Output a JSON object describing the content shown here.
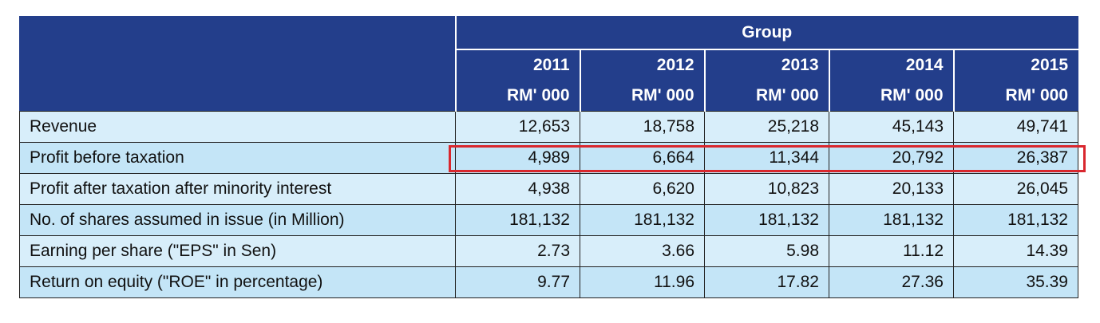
{
  "table": {
    "group_label": "Group",
    "years": [
      "2011",
      "2012",
      "2013",
      "2014",
      "2015"
    ],
    "unit_label": "RM' 000",
    "rows": [
      {
        "label": "Revenue",
        "values": [
          "12,653",
          "18,758",
          "25,218",
          "45,143",
          "49,741"
        ]
      },
      {
        "label": "Profit before taxation",
        "values": [
          "4,989",
          "6,664",
          "11,344",
          "20,792",
          "26,387"
        ]
      },
      {
        "label": "Profit after taxation after minority interest",
        "values": [
          "4,938",
          "6,620",
          "10,823",
          "20,133",
          "26,045"
        ]
      },
      {
        "label": "No. of shares assumed in issue (in Million)",
        "values": [
          "181,132",
          "181,132",
          "181,132",
          "181,132",
          "181,132"
        ]
      },
      {
        "label": "Earning per share (\"EPS\" in Sen)",
        "values": [
          "2.73",
          "3.66",
          "5.98",
          "11.12",
          "14.39"
        ]
      },
      {
        "label": "Return on equity (\"ROE\" in percentage)",
        "values": [
          "9.77",
          "11.96",
          "17.82",
          "27.36",
          "35.39"
        ]
      }
    ],
    "highlighted_row": "Profit before taxation",
    "colors": {
      "header": "#233e8b",
      "row_light": "#d8eefa",
      "row_dark": "#c4e5f7",
      "highlight": "#d9272e"
    }
  }
}
